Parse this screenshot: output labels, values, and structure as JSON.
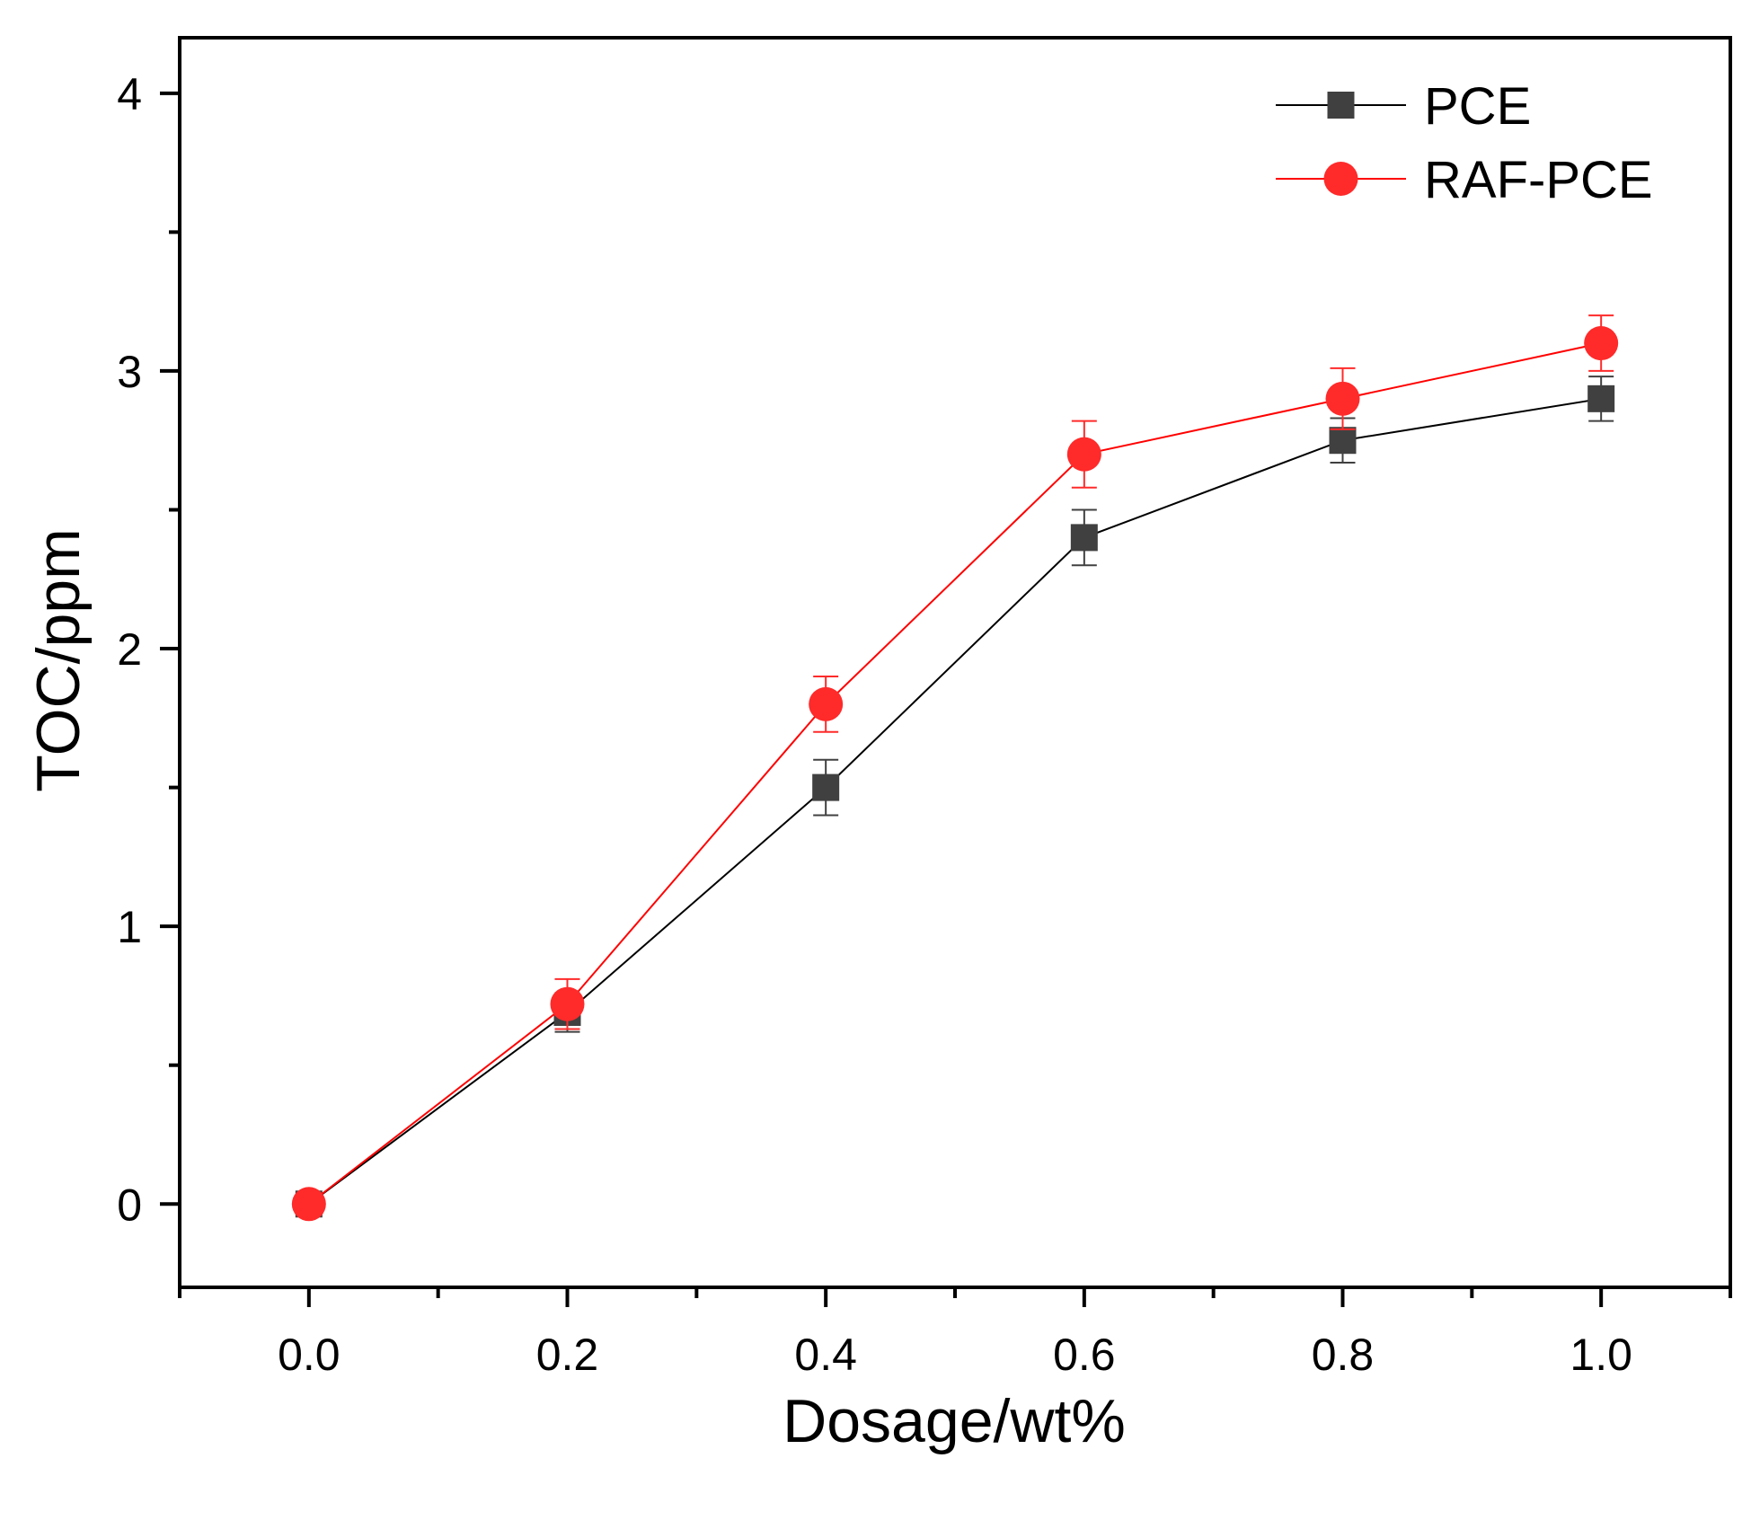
{
  "chart_data": {
    "type": "line",
    "title": "",
    "xlabel": "Dosage/wt%",
    "ylabel": "TOC/ppm",
    "xlim": [
      -0.1,
      1.1
    ],
    "ylim": [
      -0.3,
      4.2
    ],
    "x_ticks": [
      0.0,
      0.2,
      0.4,
      0.6,
      0.8,
      1.0
    ],
    "x_tick_labels": [
      "0.0",
      "0.2",
      "0.4",
      "0.6",
      "0.8",
      "1.0"
    ],
    "x_minor_ticks": [
      -0.1,
      0.1,
      0.3,
      0.5,
      0.7,
      0.9,
      1.1
    ],
    "y_ticks": [
      0,
      1,
      2,
      3,
      4
    ],
    "y_tick_labels": [
      "0",
      "1",
      "2",
      "3",
      "4"
    ],
    "y_minor_ticks": [
      0.5,
      1.5,
      2.5,
      3.5
    ],
    "grid": false,
    "legend_position": "top-right",
    "x": [
      0.0,
      0.2,
      0.4,
      0.6,
      0.8,
      1.0
    ],
    "series": [
      {
        "name": "PCE",
        "marker": "square",
        "color": "#404040",
        "line_color": "#000000",
        "values": [
          0.0,
          0.69,
          1.5,
          2.4,
          2.75,
          2.9
        ],
        "errors": [
          0.03,
          0.07,
          0.1,
          0.1,
          0.08,
          0.08
        ]
      },
      {
        "name": "RAF-PCE",
        "marker": "circle",
        "color": "#ff2a2a",
        "line_color": "#ff0000",
        "values": [
          0.0,
          0.72,
          1.8,
          2.7,
          2.9,
          3.1
        ],
        "errors": [
          0.03,
          0.09,
          0.1,
          0.12,
          0.11,
          0.1
        ]
      }
    ]
  }
}
